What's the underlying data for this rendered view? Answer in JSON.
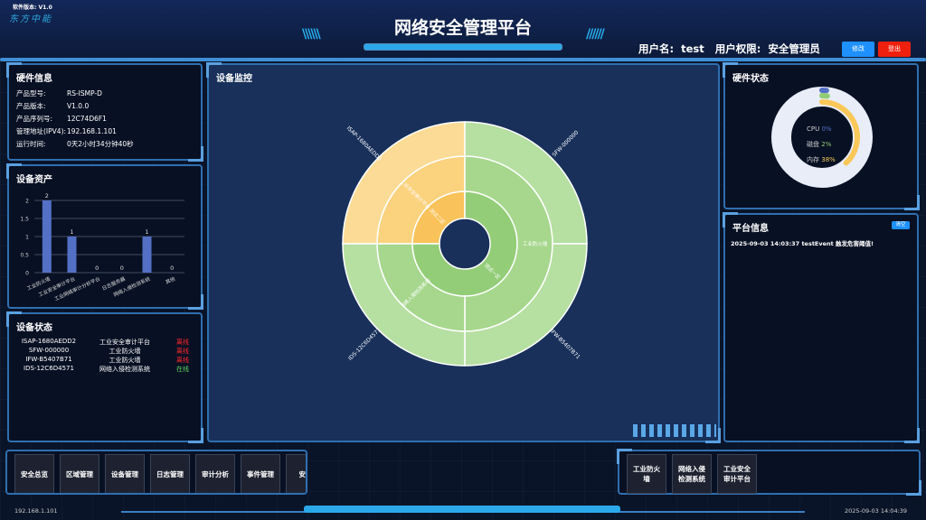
{
  "app": {
    "version": "软件版本: V1.0",
    "logo": "东方中能",
    "title": "网络安全管理平台"
  },
  "user": {
    "label": "用户名:  test   用户权限:  安全管理员",
    "edit": "修改",
    "logout": "登出",
    "edit_color": "#1e90ff",
    "logout_color": "#f0200e"
  },
  "hardware_info": {
    "title": "硬件信息",
    "rows": [
      [
        "产品型号:",
        "RS-ISMP-D"
      ],
      [
        "产品版本:",
        "V1.0.0"
      ],
      [
        "产品序列号:",
        "12C74D6F1"
      ],
      [
        "管理地址(IPV4):",
        "192.168.1.101"
      ],
      [
        "运行时间:",
        "0天2小时34分钟40秒"
      ]
    ]
  },
  "assets": {
    "title": "设备资产"
  },
  "chart_data": {
    "type": "bar",
    "categories": [
      "工业防火墙",
      "工业安全审计平台",
      "工业网络审计分析平台",
      "日志服务器",
      "网络入侵检测系统",
      "其他"
    ],
    "values": [
      2,
      1,
      0,
      0,
      1,
      0
    ],
    "yticks": [
      "0",
      "0.5",
      "1",
      "1.5",
      "2"
    ],
    "ylim": [
      0,
      2
    ],
    "color": "#5470c6",
    "grid": true
  },
  "device_status": {
    "title": "设备状态",
    "rows": [
      {
        "id": "ISAP-1680AEDD2",
        "type": "工业安全审计平台",
        "status": "离线",
        "color": "#ff2a2a"
      },
      {
        "id": "SFW-000000",
        "type": "工业防火墙",
        "status": "离线",
        "color": "#ff2a2a"
      },
      {
        "id": "IFW-B5407B71",
        "type": "工业防火墙",
        "status": "离线",
        "color": "#ff2a2a"
      },
      {
        "id": "IDS-12C6D4571",
        "type": "网络入侵检测系统",
        "status": "在线",
        "color": "#5fd35f"
      }
    ]
  },
  "monitor": {
    "title": "设备监控",
    "sunburst": {
      "inner": [
        {
          "label": "测试二区",
          "value": 1,
          "color": "#f9c25a"
        },
        {
          "label": "测试一区",
          "value": 3,
          "color": "#93cd78"
        }
      ],
      "middle": [
        {
          "label": "工业安全审计平台",
          "value": 1,
          "color": "#fbd27e"
        },
        {
          "label": "工业防火墙",
          "value": 2,
          "color": "#a6d78d"
        },
        {
          "label": "网络入侵检测系统",
          "value": 1,
          "color": "#a6d78d"
        }
      ],
      "outer": [
        {
          "label": "ISAP-1680AEDD2",
          "value": 1,
          "color": "#fcdb96"
        },
        {
          "label": "SFW-000000",
          "value": 1,
          "color": "#b6dfa2"
        },
        {
          "label": "IFW-B5407B71",
          "value": 1,
          "color": "#b6dfa2"
        },
        {
          "label": "IDS-12C6D4571",
          "value": 1,
          "color": "#b6dfa2"
        }
      ]
    }
  },
  "hw_status": {
    "title": "硬件状态",
    "items": [
      {
        "label": "CPU",
        "value": "0%",
        "pct": 0,
        "color": "#5470c6"
      },
      {
        "label": "磁盘",
        "value": "2%",
        "pct": 2,
        "color": "#91cc75"
      },
      {
        "label": "内存",
        "value": "38%",
        "pct": 38,
        "color": "#fac858"
      }
    ]
  },
  "platform": {
    "title": "平台信息",
    "clear": "清空",
    "messages": [
      "2025-09-03 14:03:37 testEvent 触发危害阈值!"
    ]
  },
  "nav": [
    "安全总览",
    "区域管理",
    "设备管理",
    "日志管理",
    "审计分析",
    "事件管理",
    "安全"
  ],
  "device_nav": [
    "工业防火墙",
    "网络入侵检测系统",
    "工业安全审计平台"
  ],
  "footer": {
    "ip": "192.168.1.101",
    "time": "2025-09-03 14:04:39"
  }
}
